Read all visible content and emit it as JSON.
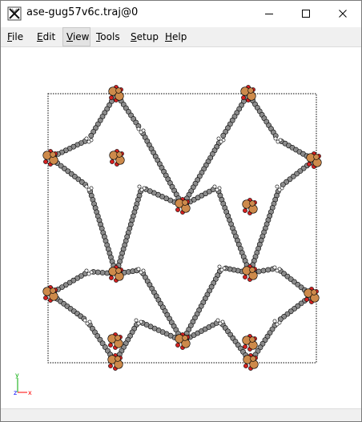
{
  "window": {
    "title": "ase-gug57v6c.traj@0"
  },
  "menu": {
    "items": [
      {
        "id": "file",
        "first": "F",
        "rest": "ile"
      },
      {
        "id": "edit",
        "first": "E",
        "rest": "dit"
      },
      {
        "id": "view",
        "first": "V",
        "rest": "iew"
      },
      {
        "id": "tools",
        "first": "T",
        "rest": "ools"
      },
      {
        "id": "setup",
        "first": "S",
        "rest": "etup"
      },
      {
        "id": "help",
        "first": "H",
        "rest": "elp"
      }
    ]
  },
  "axes": {
    "x": "x",
    "y": "y",
    "z": "z"
  },
  "colors": {
    "metal": "#cd8a4b",
    "oxygen": "#d62020",
    "carbon": "#8c8c8c",
    "hydrogen": "#ffffff",
    "cell": "#000000",
    "axis_x": "#ff0000",
    "axis_y": "#00aa00",
    "axis_z": "#0000ff"
  }
}
